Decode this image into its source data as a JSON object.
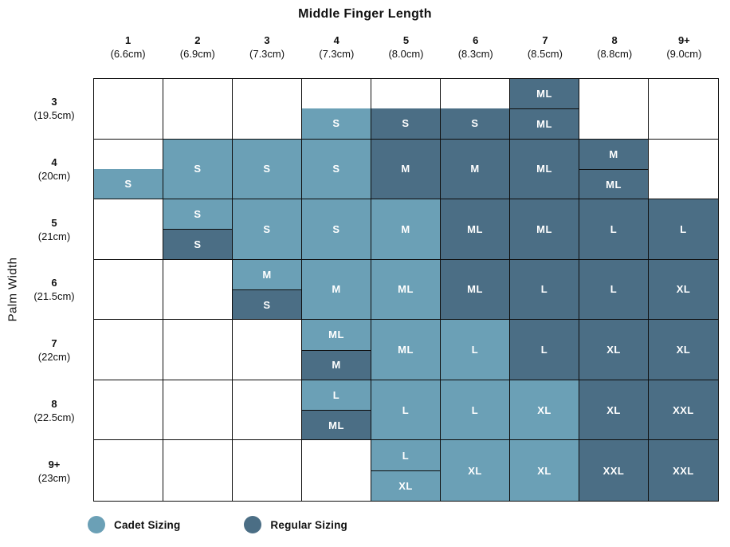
{
  "title": "Middle Finger Length",
  "ylabel": "Palm Width",
  "colors": {
    "cadet": "#6BA0B6",
    "regular": "#4B6E85",
    "grid_line": "#0d0d0d",
    "cell_text": "#ffffff"
  },
  "chart_data": {
    "type": "table",
    "title": "Middle Finger Length",
    "xlabel": "Middle Finger Length",
    "ylabel": "Palm Width",
    "legend_position": "bottom",
    "columns": [
      {
        "label": "1",
        "cm": "(6.6cm)"
      },
      {
        "label": "2",
        "cm": "(6.9cm)"
      },
      {
        "label": "3",
        "cm": "(7.3cm)"
      },
      {
        "label": "4",
        "cm": "(7.3cm)"
      },
      {
        "label": "5",
        "cm": "(8.0cm)"
      },
      {
        "label": "6",
        "cm": "(8.3cm)"
      },
      {
        "label": "7",
        "cm": "(8.5cm)"
      },
      {
        "label": "8",
        "cm": "(8.8cm)"
      },
      {
        "label": "9+",
        "cm": "(9.0cm)"
      }
    ],
    "rows": [
      {
        "label": "3",
        "cm": "(19.5cm)",
        "cells": [
          null,
          null,
          null,
          {
            "top": null,
            "bottom": {
              "size": "S",
              "fit": "cadet"
            },
            "divider": false
          },
          {
            "top": null,
            "bottom": {
              "size": "S",
              "fit": "regular"
            },
            "divider": false
          },
          {
            "top": null,
            "bottom": {
              "size": "S",
              "fit": "regular"
            },
            "divider": false
          },
          {
            "top": {
              "size": "ML",
              "fit": "regular"
            },
            "bottom": {
              "size": "ML",
              "fit": "regular"
            },
            "divider": true
          },
          null,
          null
        ]
      },
      {
        "label": "4",
        "cm": "(20cm)",
        "cells": [
          {
            "top": null,
            "bottom": {
              "size": "S",
              "fit": "cadet"
            },
            "divider": false
          },
          {
            "full": {
              "size": "S",
              "fit": "cadet"
            }
          },
          {
            "full": {
              "size": "S",
              "fit": "cadet"
            }
          },
          {
            "full": {
              "size": "S",
              "fit": "cadet"
            }
          },
          {
            "full": {
              "size": "M",
              "fit": "regular"
            }
          },
          {
            "full": {
              "size": "M",
              "fit": "regular"
            }
          },
          {
            "full": {
              "size": "ML",
              "fit": "regular"
            }
          },
          {
            "top": {
              "size": "M",
              "fit": "regular"
            },
            "bottom": {
              "size": "ML",
              "fit": "regular"
            },
            "divider": true
          },
          null
        ]
      },
      {
        "label": "5",
        "cm": "(21cm)",
        "cells": [
          null,
          {
            "top": {
              "size": "S",
              "fit": "cadet"
            },
            "bottom": {
              "size": "S",
              "fit": "regular"
            },
            "divider": true
          },
          {
            "full": {
              "size": "S",
              "fit": "cadet"
            }
          },
          {
            "full": {
              "size": "S",
              "fit": "cadet"
            }
          },
          {
            "full": {
              "size": "M",
              "fit": "cadet"
            }
          },
          {
            "full": {
              "size": "ML",
              "fit": "regular"
            }
          },
          {
            "full": {
              "size": "ML",
              "fit": "regular"
            }
          },
          {
            "full": {
              "size": "L",
              "fit": "regular"
            }
          },
          {
            "full": {
              "size": "L",
              "fit": "regular"
            }
          }
        ]
      },
      {
        "label": "6",
        "cm": "(21.5cm)",
        "cells": [
          null,
          null,
          {
            "top": {
              "size": "M",
              "fit": "cadet"
            },
            "bottom": {
              "size": "S",
              "fit": "regular"
            },
            "divider": true
          },
          {
            "full": {
              "size": "M",
              "fit": "cadet"
            }
          },
          {
            "full": {
              "size": "ML",
              "fit": "cadet"
            }
          },
          {
            "full": {
              "size": "ML",
              "fit": "regular"
            }
          },
          {
            "full": {
              "size": "L",
              "fit": "regular"
            }
          },
          {
            "full": {
              "size": "L",
              "fit": "regular"
            }
          },
          {
            "full": {
              "size": "XL",
              "fit": "regular"
            }
          }
        ]
      },
      {
        "label": "7",
        "cm": "(22cm)",
        "cells": [
          null,
          null,
          null,
          {
            "top": {
              "size": "ML",
              "fit": "cadet"
            },
            "bottom": {
              "size": "M",
              "fit": "regular"
            },
            "divider": true
          },
          {
            "full": {
              "size": "ML",
              "fit": "cadet"
            }
          },
          {
            "full": {
              "size": "L",
              "fit": "cadet"
            }
          },
          {
            "full": {
              "size": "L",
              "fit": "regular"
            }
          },
          {
            "full": {
              "size": "XL",
              "fit": "regular"
            }
          },
          {
            "full": {
              "size": "XL",
              "fit": "regular"
            }
          }
        ]
      },
      {
        "label": "8",
        "cm": "(22.5cm)",
        "cells": [
          null,
          null,
          null,
          {
            "top": {
              "size": "L",
              "fit": "cadet"
            },
            "bottom": {
              "size": "ML",
              "fit": "regular"
            },
            "divider": true
          },
          {
            "full": {
              "size": "L",
              "fit": "cadet"
            }
          },
          {
            "full": {
              "size": "L",
              "fit": "cadet"
            }
          },
          {
            "full": {
              "size": "XL",
              "fit": "cadet"
            }
          },
          {
            "full": {
              "size": "XL",
              "fit": "regular"
            }
          },
          {
            "full": {
              "size": "XXL",
              "fit": "regular"
            }
          }
        ]
      },
      {
        "label": "9+",
        "cm": "(23cm)",
        "cells": [
          null,
          null,
          null,
          null,
          {
            "top": {
              "size": "L",
              "fit": "cadet"
            },
            "bottom": {
              "size": "XL",
              "fit": "cadet"
            },
            "divider": true
          },
          {
            "full": {
              "size": "XL",
              "fit": "cadet"
            }
          },
          {
            "full": {
              "size": "XL",
              "fit": "cadet"
            }
          },
          {
            "full": {
              "size": "XXL",
              "fit": "regular"
            }
          },
          {
            "full": {
              "size": "XXL",
              "fit": "regular"
            }
          }
        ]
      }
    ],
    "legend": [
      {
        "label": "Cadet Sizing",
        "fit": "cadet",
        "color": "#6BA0B6"
      },
      {
        "label": "Regular Sizing",
        "fit": "regular",
        "color": "#4B6E85"
      }
    ]
  }
}
